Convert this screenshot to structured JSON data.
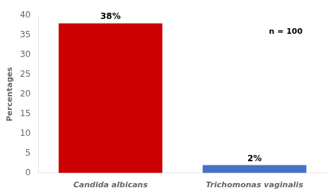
{
  "chart_data": {
    "type": "bar",
    "categories": [
      "Candida albicans",
      "Trichomonas vaginalis"
    ],
    "values": [
      38,
      2
    ],
    "colors": [
      "#cc0000",
      "#4472c4"
    ],
    "data_labels": true,
    "value_labels": [
      "38%",
      "2%"
    ],
    "ylabel": "Percentages",
    "annotation": "n = 100",
    "ylim": [
      0,
      40
    ],
    "yticks": [
      0,
      5,
      10,
      15,
      20,
      25,
      30,
      35,
      40
    ],
    "grid": false
  }
}
